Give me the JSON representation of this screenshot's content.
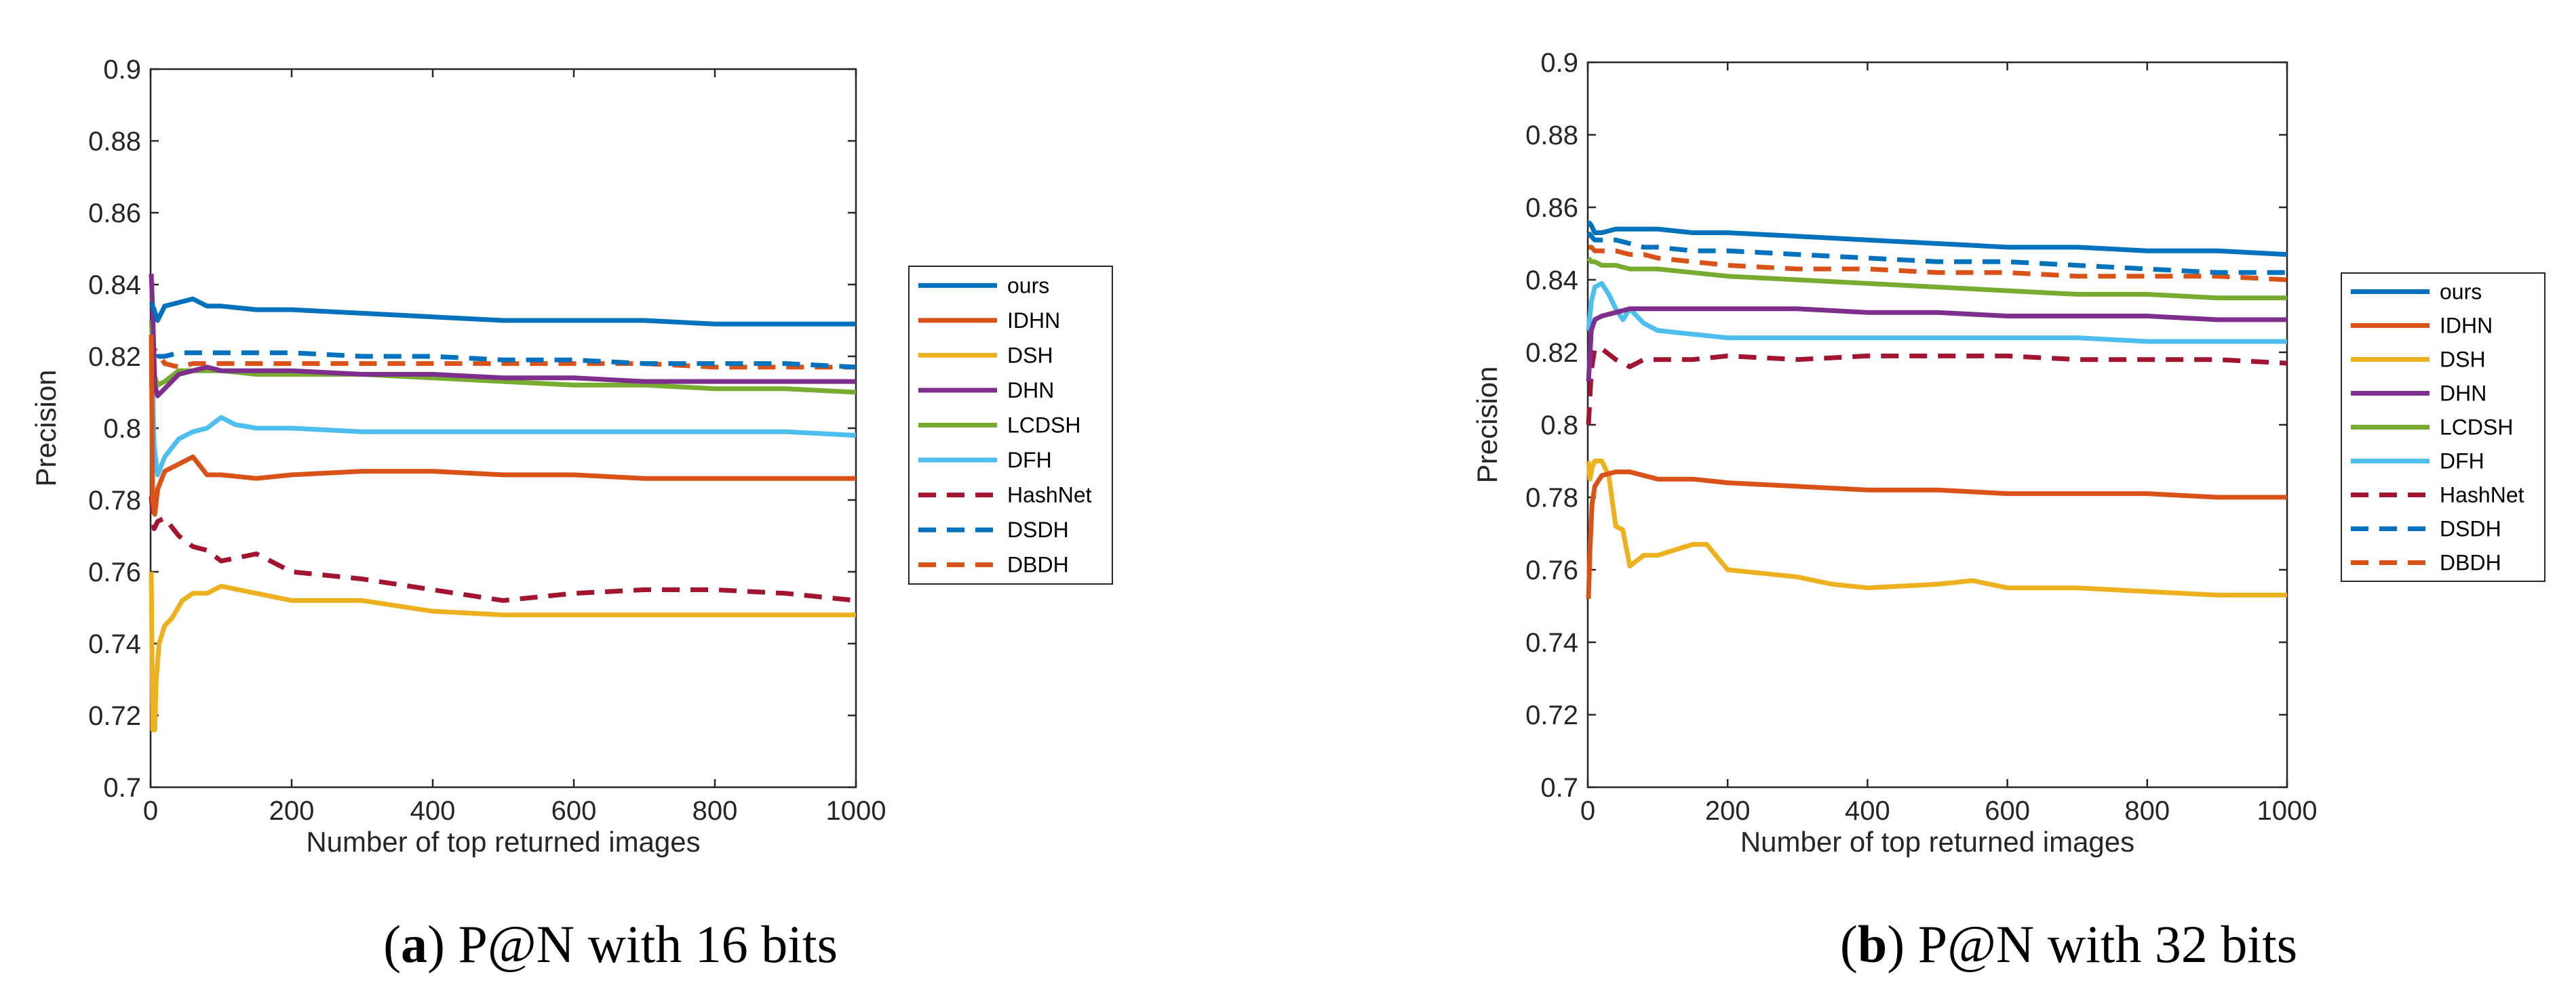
{
  "chart_data": [
    {
      "type": "line",
      "panel": "a",
      "caption_letter": "a",
      "caption_text": "P@N with 16 bits",
      "xlabel": "Number of top returned images",
      "ylabel": "Precision",
      "xlim": [
        0,
        1000
      ],
      "ylim": [
        0.7,
        0.9
      ],
      "xticks": [
        0,
        200,
        400,
        600,
        800,
        1000
      ],
      "yticks": [
        0.7,
        0.72,
        0.74,
        0.76,
        0.78,
        0.8,
        0.82,
        0.84,
        0.86,
        0.88,
        0.9
      ],
      "ytick_labels": [
        "0.7",
        "0.72",
        "0.74",
        "0.76",
        "0.78",
        "0.8",
        "0.82",
        "0.84",
        "0.86",
        "0.88",
        "0.9"
      ],
      "xtick_labels": [
        "0",
        "200",
        "400",
        "600",
        "800",
        "1000"
      ],
      "legend_position": "right",
      "series": [
        {
          "name": "ours",
          "color": "#0072BD",
          "style": "solid",
          "x": [
            1,
            5,
            10,
            20,
            40,
            60,
            80,
            100,
            150,
            200,
            300,
            400,
            500,
            600,
            700,
            800,
            900,
            1000
          ],
          "values": [
            0.835,
            0.833,
            0.83,
            0.834,
            0.835,
            0.836,
            0.834,
            0.834,
            0.833,
            0.833,
            0.832,
            0.831,
            0.83,
            0.83,
            0.83,
            0.829,
            0.829,
            0.829
          ]
        },
        {
          "name": "IDHN",
          "color": "#D95319",
          "style": "solid",
          "x": [
            1,
            3,
            6,
            10,
            20,
            40,
            60,
            80,
            100,
            150,
            200,
            300,
            400,
            500,
            600,
            700,
            800,
            900,
            1000
          ],
          "values": [
            0.826,
            0.78,
            0.776,
            0.783,
            0.788,
            0.79,
            0.792,
            0.787,
            0.787,
            0.786,
            0.787,
            0.788,
            0.788,
            0.787,
            0.787,
            0.786,
            0.786,
            0.786,
            0.786
          ]
        },
        {
          "name": "DSH",
          "color": "#EDB120",
          "style": "solid",
          "x": [
            1,
            3,
            6,
            8,
            12,
            20,
            30,
            45,
            60,
            80,
            100,
            150,
            200,
            300,
            400,
            500,
            600,
            700,
            800,
            900,
            1000
          ],
          "values": [
            0.76,
            0.716,
            0.716,
            0.73,
            0.74,
            0.745,
            0.747,
            0.752,
            0.754,
            0.754,
            0.756,
            0.754,
            0.752,
            0.752,
            0.749,
            0.748,
            0.748,
            0.748,
            0.748,
            0.748,
            0.748
          ]
        },
        {
          "name": "DHN",
          "color": "#7E2F8E",
          "style": "solid",
          "x": [
            1,
            3,
            6,
            10,
            20,
            40,
            60,
            80,
            100,
            150,
            200,
            300,
            400,
            500,
            600,
            700,
            800,
            900,
            1000
          ],
          "values": [
            0.843,
            0.833,
            0.812,
            0.809,
            0.811,
            0.815,
            0.816,
            0.817,
            0.816,
            0.816,
            0.816,
            0.815,
            0.815,
            0.814,
            0.814,
            0.813,
            0.813,
            0.813,
            0.813
          ]
        },
        {
          "name": "LCDSH",
          "color": "#77AC30",
          "style": "solid",
          "x": [
            1,
            5,
            10,
            20,
            40,
            60,
            80,
            100,
            150,
            200,
            300,
            400,
            500,
            600,
            700,
            800,
            900,
            1000
          ],
          "values": [
            0.83,
            0.815,
            0.812,
            0.813,
            0.816,
            0.816,
            0.816,
            0.816,
            0.815,
            0.815,
            0.815,
            0.814,
            0.813,
            0.812,
            0.812,
            0.811,
            0.811,
            0.81
          ]
        },
        {
          "name": "DFH",
          "color": "#4DBEEE",
          "style": "solid",
          "x": [
            1,
            5,
            10,
            20,
            40,
            60,
            80,
            100,
            120,
            150,
            200,
            300,
            400,
            500,
            600,
            700,
            800,
            900,
            1000
          ],
          "values": [
            0.826,
            0.795,
            0.787,
            0.792,
            0.797,
            0.799,
            0.8,
            0.803,
            0.801,
            0.8,
            0.8,
            0.799,
            0.799,
            0.799,
            0.799,
            0.799,
            0.799,
            0.799,
            0.798
          ]
        },
        {
          "name": "HashNet",
          "color": "#A2142F",
          "style": "dashed",
          "x": [
            1,
            5,
            10,
            20,
            40,
            60,
            80,
            100,
            150,
            200,
            300,
            400,
            500,
            600,
            700,
            800,
            900,
            1000
          ],
          "values": [
            0.781,
            0.772,
            0.774,
            0.775,
            0.77,
            0.767,
            0.766,
            0.763,
            0.765,
            0.76,
            0.758,
            0.755,
            0.752,
            0.754,
            0.755,
            0.755,
            0.754,
            0.752
          ]
        },
        {
          "name": "DSDH",
          "color": "#0072BD",
          "style": "dashed",
          "x": [
            1,
            5,
            10,
            20,
            40,
            60,
            80,
            100,
            150,
            200,
            300,
            400,
            500,
            600,
            700,
            800,
            900,
            1000
          ],
          "values": [
            0.812,
            0.818,
            0.82,
            0.82,
            0.821,
            0.821,
            0.821,
            0.821,
            0.821,
            0.821,
            0.82,
            0.82,
            0.819,
            0.819,
            0.818,
            0.818,
            0.818,
            0.817
          ]
        },
        {
          "name": "DBDH",
          "color": "#D95319",
          "style": "dashed",
          "x": [
            1,
            5,
            10,
            20,
            40,
            60,
            80,
            100,
            150,
            200,
            300,
            400,
            500,
            600,
            700,
            800,
            900,
            1000
          ],
          "values": [
            0.826,
            0.822,
            0.821,
            0.818,
            0.817,
            0.818,
            0.818,
            0.818,
            0.818,
            0.818,
            0.818,
            0.818,
            0.818,
            0.818,
            0.818,
            0.817,
            0.817,
            0.817
          ]
        }
      ]
    },
    {
      "type": "line",
      "panel": "b",
      "caption_letter": "b",
      "caption_text": "P@N with 32 bits",
      "xlabel": "Number of top returned images",
      "ylabel": "Precision",
      "xlim": [
        0,
        1000
      ],
      "ylim": [
        0.7,
        0.9
      ],
      "xticks": [
        0,
        200,
        400,
        600,
        800,
        1000
      ],
      "yticks": [
        0.7,
        0.72,
        0.74,
        0.76,
        0.78,
        0.8,
        0.82,
        0.84,
        0.86,
        0.88,
        0.9
      ],
      "ytick_labels": [
        "0.7",
        "0.72",
        "0.74",
        "0.76",
        "0.78",
        "0.8",
        "0.82",
        "0.84",
        "0.86",
        "0.88",
        "0.9"
      ],
      "xtick_labels": [
        "0",
        "200",
        "400",
        "600",
        "800",
        "1000"
      ],
      "legend_position": "right",
      "series": [
        {
          "name": "ours",
          "color": "#0072BD",
          "style": "solid",
          "x": [
            1,
            5,
            10,
            20,
            40,
            60,
            80,
            100,
            150,
            200,
            300,
            400,
            500,
            600,
            700,
            800,
            900,
            1000
          ],
          "values": [
            0.856,
            0.855,
            0.853,
            0.853,
            0.854,
            0.854,
            0.854,
            0.854,
            0.853,
            0.853,
            0.852,
            0.851,
            0.85,
            0.849,
            0.849,
            0.848,
            0.848,
            0.847
          ]
        },
        {
          "name": "IDHN",
          "color": "#D95319",
          "style": "solid",
          "x": [
            1,
            3,
            6,
            10,
            20,
            40,
            60,
            80,
            100,
            150,
            200,
            300,
            400,
            500,
            600,
            700,
            800,
            900,
            1000
          ],
          "values": [
            0.752,
            0.765,
            0.778,
            0.783,
            0.786,
            0.787,
            0.787,
            0.786,
            0.785,
            0.785,
            0.784,
            0.783,
            0.782,
            0.782,
            0.781,
            0.781,
            0.781,
            0.78,
            0.78
          ]
        },
        {
          "name": "DSH",
          "color": "#EDB120",
          "style": "solid",
          "x": [
            1,
            3,
            6,
            10,
            20,
            30,
            40,
            50,
            60,
            80,
            100,
            150,
            170,
            200,
            250,
            300,
            350,
            400,
            500,
            550,
            600,
            700,
            800,
            900,
            1000
          ],
          "values": [
            0.79,
            0.785,
            0.788,
            0.79,
            0.79,
            0.786,
            0.772,
            0.771,
            0.761,
            0.764,
            0.764,
            0.767,
            0.767,
            0.76,
            0.759,
            0.758,
            0.756,
            0.755,
            0.756,
            0.757,
            0.755,
            0.755,
            0.754,
            0.753,
            0.753
          ]
        },
        {
          "name": "DHN",
          "color": "#7E2F8E",
          "style": "solid",
          "x": [
            1,
            5,
            10,
            20,
            40,
            60,
            80,
            100,
            150,
            200,
            300,
            400,
            500,
            600,
            700,
            800,
            900,
            1000
          ],
          "values": [
            0.812,
            0.826,
            0.829,
            0.83,
            0.831,
            0.832,
            0.832,
            0.832,
            0.832,
            0.832,
            0.832,
            0.831,
            0.831,
            0.83,
            0.83,
            0.83,
            0.829,
            0.829
          ]
        },
        {
          "name": "LCDSH",
          "color": "#77AC30",
          "style": "solid",
          "x": [
            1,
            5,
            10,
            20,
            40,
            60,
            80,
            100,
            150,
            200,
            300,
            400,
            500,
            600,
            700,
            800,
            900,
            1000
          ],
          "values": [
            0.846,
            0.845,
            0.845,
            0.844,
            0.844,
            0.843,
            0.843,
            0.843,
            0.842,
            0.841,
            0.84,
            0.839,
            0.838,
            0.837,
            0.836,
            0.836,
            0.835,
            0.835
          ]
        },
        {
          "name": "DFH",
          "color": "#4DBEEE",
          "style": "solid",
          "x": [
            1,
            5,
            10,
            20,
            30,
            40,
            50,
            60,
            80,
            100,
            150,
            200,
            300,
            400,
            500,
            600,
            700,
            800,
            900,
            1000
          ],
          "values": [
            0.826,
            0.834,
            0.838,
            0.839,
            0.836,
            0.832,
            0.829,
            0.832,
            0.828,
            0.826,
            0.825,
            0.824,
            0.824,
            0.824,
            0.824,
            0.824,
            0.824,
            0.823,
            0.823,
            0.823
          ]
        },
        {
          "name": "HashNet",
          "color": "#A2142F",
          "style": "dashed",
          "x": [
            1,
            5,
            10,
            20,
            40,
            60,
            80,
            100,
            150,
            200,
            300,
            400,
            500,
            600,
            700,
            800,
            900,
            1000
          ],
          "values": [
            0.8,
            0.815,
            0.821,
            0.821,
            0.818,
            0.816,
            0.818,
            0.818,
            0.818,
            0.819,
            0.818,
            0.819,
            0.819,
            0.819,
            0.818,
            0.818,
            0.818,
            0.817
          ]
        },
        {
          "name": "DSDH",
          "color": "#0072BD",
          "style": "dashed",
          "x": [
            1,
            5,
            10,
            20,
            40,
            60,
            80,
            100,
            150,
            200,
            300,
            400,
            500,
            600,
            700,
            800,
            900,
            1000
          ],
          "values": [
            0.853,
            0.852,
            0.851,
            0.851,
            0.851,
            0.85,
            0.849,
            0.849,
            0.848,
            0.848,
            0.847,
            0.846,
            0.845,
            0.845,
            0.844,
            0.843,
            0.842,
            0.842
          ]
        },
        {
          "name": "DBDH",
          "color": "#D95319",
          "style": "dashed",
          "x": [
            1,
            5,
            10,
            20,
            40,
            60,
            80,
            100,
            150,
            200,
            300,
            400,
            500,
            600,
            700,
            800,
            900,
            1000
          ],
          "values": [
            0.849,
            0.849,
            0.848,
            0.848,
            0.848,
            0.847,
            0.847,
            0.846,
            0.845,
            0.844,
            0.843,
            0.843,
            0.842,
            0.842,
            0.841,
            0.841,
            0.841,
            0.84
          ]
        }
      ]
    }
  ]
}
